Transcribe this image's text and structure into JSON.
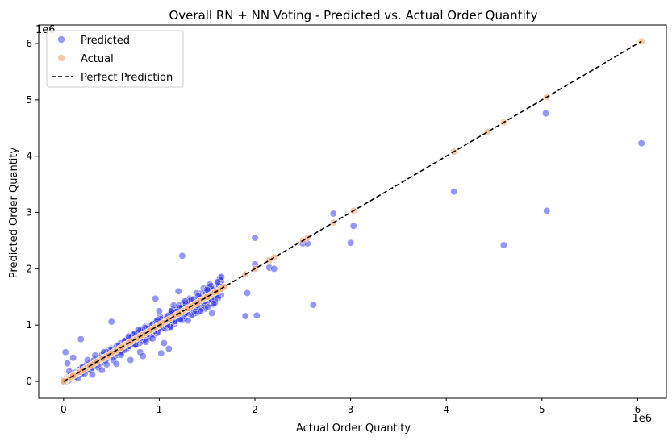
{
  "chart_data": {
    "type": "scatter",
    "title": "Overall RN + NN Voting - Predicted vs. Actual Order Quantity",
    "xlabel": "Actual Order Quantity",
    "ylabel": "Predicted Order Quantity",
    "x_offset_label": "1e6",
    "y_offset_label": "1e6",
    "xlim": [
      -260000,
      6300000
    ],
    "ylim": [
      -300000,
      6330000
    ],
    "x_ticks": [
      0,
      1000000,
      2000000,
      3000000,
      4000000,
      5000000,
      6000000
    ],
    "x_tick_labels": [
      "0",
      "1",
      "2",
      "3",
      "4",
      "5",
      "6"
    ],
    "y_ticks": [
      0,
      1000000,
      2000000,
      3000000,
      4000000,
      5000000,
      6000000
    ],
    "y_tick_labels": [
      "0",
      "1",
      "2",
      "3",
      "4",
      "5",
      "6"
    ],
    "grid": false,
    "legend_position": "top-left",
    "colors": {
      "predicted": "#2a2ff0",
      "actual": "#f4a46c",
      "perfect": "#000000"
    },
    "series": [
      {
        "name": "Predicted",
        "marker": "circle",
        "points": [
          [
            20000,
            520000
          ],
          [
            40000,
            320000
          ],
          [
            60000,
            180000
          ],
          [
            80000,
            90000
          ],
          [
            100000,
            420000
          ],
          [
            120000,
            150000
          ],
          [
            150000,
            60000
          ],
          [
            180000,
            750000
          ],
          [
            200000,
            260000
          ],
          [
            220000,
            140000
          ],
          [
            250000,
            380000
          ],
          [
            280000,
            200000
          ],
          [
            300000,
            120000
          ],
          [
            330000,
            460000
          ],
          [
            360000,
            250000
          ],
          [
            400000,
            200000
          ],
          [
            420000,
            520000
          ],
          [
            450000,
            300000
          ],
          [
            500000,
            1060000
          ],
          [
            520000,
            380000
          ],
          [
            550000,
            310000
          ],
          [
            580000,
            640000
          ],
          [
            600000,
            470000
          ],
          [
            640000,
            560000
          ],
          [
            680000,
            800000
          ],
          [
            700000,
            380000
          ],
          [
            750000,
            650000
          ],
          [
            780000,
            920000
          ],
          [
            800000,
            520000
          ],
          [
            830000,
            450000
          ],
          [
            860000,
            700000
          ],
          [
            900000,
            880000
          ],
          [
            930000,
            760000
          ],
          [
            960000,
            1470000
          ],
          [
            980000,
            1090000
          ],
          [
            1000000,
            1250000
          ],
          [
            1020000,
            500000
          ],
          [
            1050000,
            680000
          ],
          [
            1100000,
            580000
          ],
          [
            1150000,
            1350000
          ],
          [
            1200000,
            1600000
          ],
          [
            1220000,
            1100000
          ],
          [
            1240000,
            2230000
          ],
          [
            1300000,
            1080000
          ],
          [
            1380000,
            1310000
          ],
          [
            1400000,
            1350000
          ],
          [
            1500000,
            1630000
          ],
          [
            1550000,
            1210000
          ],
          [
            1600000,
            1520000
          ],
          [
            1650000,
            1680000
          ],
          [
            1900000,
            1160000
          ],
          [
            1920000,
            1570000
          ],
          [
            2000000,
            2550000
          ],
          [
            2020000,
            1170000
          ],
          [
            2000000,
            2080000
          ],
          [
            2150000,
            2020000
          ],
          [
            2200000,
            2000000
          ],
          [
            2500000,
            2450000
          ],
          [
            2550000,
            2450000
          ],
          [
            2610000,
            1360000
          ],
          [
            2820000,
            2980000
          ],
          [
            3000000,
            2460000
          ],
          [
            3030000,
            2760000
          ],
          [
            4080000,
            3370000
          ],
          [
            4600000,
            2420000
          ],
          [
            5040000,
            4760000
          ],
          [
            5050000,
            3030000
          ],
          [
            6040000,
            4230000
          ]
        ]
      },
      {
        "name": "Actual",
        "marker": "circle",
        "points": [
          [
            0,
            0
          ],
          [
            100000,
            100000
          ],
          [
            200000,
            200000
          ],
          [
            300000,
            300000
          ],
          [
            400000,
            400000
          ],
          [
            500000,
            500000
          ],
          [
            600000,
            600000
          ],
          [
            700000,
            700000
          ],
          [
            800000,
            800000
          ],
          [
            900000,
            900000
          ],
          [
            1000000,
            1000000
          ],
          [
            1100000,
            1100000
          ],
          [
            1200000,
            1200000
          ],
          [
            1300000,
            1300000
          ],
          [
            1400000,
            1400000
          ],
          [
            1500000,
            1500000
          ],
          [
            1600000,
            1600000
          ],
          [
            1680000,
            1680000
          ],
          [
            1900000,
            1900000
          ],
          [
            2000000,
            2000000
          ],
          [
            2150000,
            2150000
          ],
          [
            2200000,
            2200000
          ],
          [
            2500000,
            2500000
          ],
          [
            2550000,
            2550000
          ],
          [
            2820000,
            2820000
          ],
          [
            3030000,
            3030000
          ],
          [
            4080000,
            4080000
          ],
          [
            4430000,
            4430000
          ],
          [
            4600000,
            4600000
          ],
          [
            5050000,
            5050000
          ],
          [
            6040000,
            6040000
          ]
        ]
      },
      {
        "name": "Perfect Prediction",
        "line_style": "dashed",
        "points": [
          [
            0,
            0
          ],
          [
            6040000,
            6040000
          ]
        ]
      }
    ]
  }
}
